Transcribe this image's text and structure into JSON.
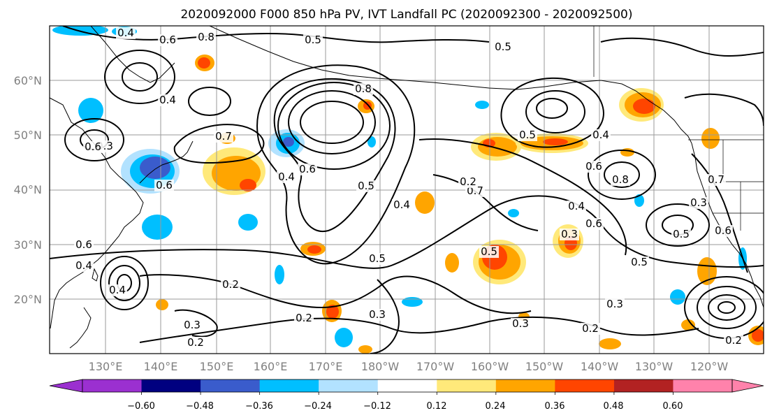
{
  "title": "2020092000 F000 850 hPa PV, IVT Landfall PC (2020092300 - 2020092500)",
  "map": {
    "projection": "PlateCarree",
    "lon_range": [
      120,
      248
    ],
    "lat_range": [
      10,
      70
    ],
    "lat_ticks": [
      "60°N",
      "50°N",
      "40°N",
      "30°N",
      "20°N"
    ],
    "lon_ticks": [
      "130°E",
      "140°E",
      "150°E",
      "160°E",
      "170°E",
      "180°W",
      "170°W",
      "160°W",
      "150°W",
      "140°W",
      "130°W",
      "120°W"
    ],
    "gridlines": true,
    "contour_variable": "850 hPa PV",
    "contour_labels": [
      "0.4",
      "0.6",
      "0.8",
      "0.5",
      "0.5",
      "0.2",
      "0.4",
      "0.3",
      "0.6",
      "0.7",
      "0.6",
      "0.4",
      "0.8",
      "0.5",
      "0.6",
      "0.4",
      "0.6",
      "0.2",
      "0.5",
      "0.4",
      "0.3",
      "0.2",
      "0.3",
      "0.2",
      "0.3",
      "0.6",
      "0.4",
      "0.7",
      "0.5",
      "0.8",
      "0.4",
      "0.6",
      "0.3",
      "0.5",
      "0.2",
      "0.3",
      "0.5",
      "0.6",
      "0.7",
      "0.5",
      "0.4",
      "0.3",
      "0.2"
    ]
  },
  "colorbar": {
    "ticks": [
      "−0.60",
      "−0.48",
      "−0.36",
      "−0.24",
      "−0.12",
      "0.12",
      "0.24",
      "0.36",
      "0.48",
      "0.60"
    ],
    "colors": [
      "#9b30d0",
      "#000080",
      "#3a5ccc",
      "#00bfff",
      "#b2e2ff",
      "#ffffff",
      "#ffe97a",
      "#ffa500",
      "#ff4500",
      "#b22222",
      "#ff82ab"
    ],
    "extend": "both"
  },
  "shading_colors": {
    "neg_strong": "#3a5ccc",
    "neg_mid": "#00bfff",
    "neg_weak": "#b2e2ff",
    "pos_weak": "#ffe97a",
    "pos_mid": "#ffa500",
    "pos_strong": "#ff4500"
  }
}
